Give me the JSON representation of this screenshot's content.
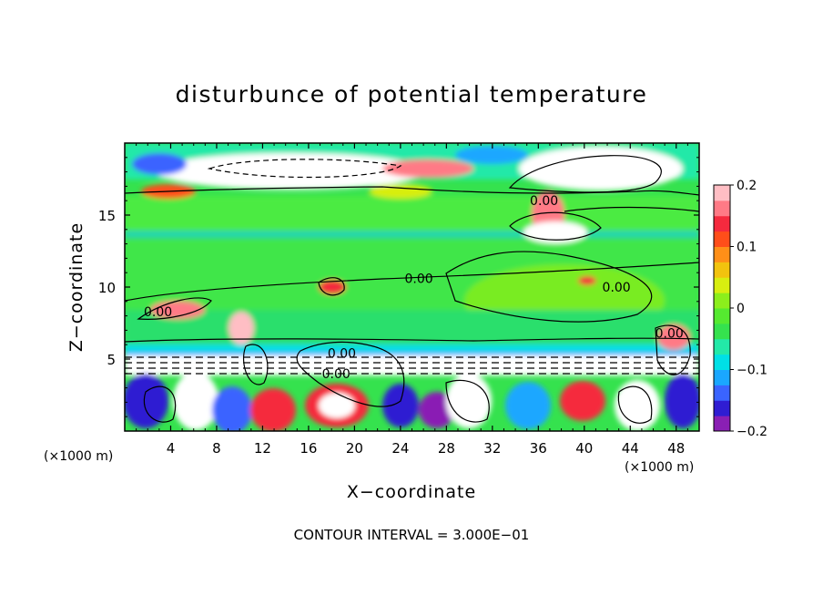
{
  "chart_data": {
    "type": "heatmap",
    "title": "disturbunce of potential temperature",
    "xlabel": "X−coordinate",
    "ylabel": "Z−coordinate",
    "x_unit_left": "(×1000 m)",
    "x_unit_right": "(×1000 m)",
    "x_range": [
      0,
      50
    ],
    "y_range": [
      0,
      20
    ],
    "x_ticks": [
      4,
      8,
      12,
      16,
      20,
      24,
      28,
      32,
      36,
      40,
      44,
      48
    ],
    "x_tick_labels": [
      "4",
      "8",
      "12",
      "16",
      "20",
      "24",
      "28",
      "32",
      "36",
      "40",
      "44",
      "48"
    ],
    "y_ticks": [
      5,
      10,
      15
    ],
    "y_tick_labels": [
      "5",
      "10",
      "15"
    ],
    "colorbar": {
      "range": [
        -0.2,
        0.2
      ],
      "ticks": [
        -0.2,
        -0.1,
        0,
        0.1,
        0.2
      ],
      "tick_labels": [
        "−0.2",
        "−0.1",
        "0",
        "0.1",
        "0.2"
      ],
      "colors": [
        "#8a1fb4",
        "#2f1dd2",
        "#3a64ff",
        "#1aa7ff",
        "#00e0e6",
        "#23e9a8",
        "#35e24e",
        "#55ea30",
        "#8cee1c",
        "#d8ee10",
        "#f2c30e",
        "#ff8f18",
        "#ff4e1a",
        "#f52a3e",
        "#ff7a86",
        "#ffbec4"
      ]
    },
    "contour_labels": [
      {
        "text": "0.00",
        "x": 36.5,
        "y": 16.0
      },
      {
        "text": "0.00",
        "x": 25.6,
        "y": 10.6
      },
      {
        "text": "0.00",
        "x": 42.8,
        "y": 10.0
      },
      {
        "text": "0.00",
        "x": 2.9,
        "y": 8.3
      },
      {
        "text": "0.00",
        "x": 18.9,
        "y": 5.4
      },
      {
        "text": "0.00",
        "x": 47.4,
        "y": 6.8
      },
      {
        "text": "0.00",
        "x": 18.4,
        "y": 4.0
      }
    ],
    "footer": "CONTOUR INTERVAL = 3.000E−01"
  }
}
